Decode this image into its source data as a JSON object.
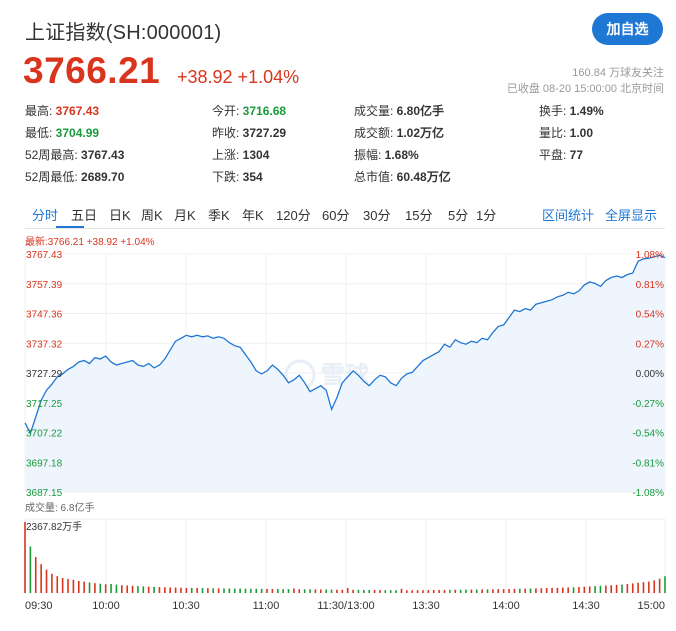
{
  "header": {
    "title": "上证指数(SH:000001)",
    "follow_label": "加自选",
    "price": "3766.21",
    "change": "+38.92 +1.04%",
    "followers": "160.84 万球友关注",
    "status": "已收盘 08-20 15:00:00 北京时间"
  },
  "quote": [
    {
      "label": "最高:",
      "value": "3767.43",
      "tone": "red"
    },
    {
      "label": "今开:",
      "value": "3716.68",
      "tone": "green"
    },
    {
      "label": "成交量:",
      "value": "6.80亿手",
      "tone": ""
    },
    {
      "label": "换手:",
      "value": "1.49%",
      "tone": ""
    },
    {
      "label": "最低:",
      "value": "3704.99",
      "tone": "green"
    },
    {
      "label": "昨收:",
      "value": "3727.29",
      "tone": ""
    },
    {
      "label": "成交额:",
      "value": "1.02万亿",
      "tone": ""
    },
    {
      "label": "量比:",
      "value": "1.00",
      "tone": ""
    },
    {
      "label": "52周最高:",
      "value": "3767.43",
      "tone": ""
    },
    {
      "label": "上涨:",
      "value": "1304",
      "tone": ""
    },
    {
      "label": "振幅:",
      "value": "1.68%",
      "tone": ""
    },
    {
      "label": "平盘:",
      "value": "77",
      "tone": ""
    },
    {
      "label": "52周最低:",
      "value": "2689.70",
      "tone": ""
    },
    {
      "label": "下跌:",
      "value": "354",
      "tone": ""
    },
    {
      "label": "总市值:",
      "value": "60.48万亿",
      "tone": ""
    }
  ],
  "tabs": [
    "分时",
    "五日",
    "日K",
    "周K",
    "月K",
    "季K",
    "年K",
    "120分",
    "60分",
    "30分",
    "15分",
    "5分",
    "1分"
  ],
  "tab_right": [
    "区间统计",
    "全屏显示"
  ],
  "latest_label": "最新:3766.21 +38.92 +1.04%",
  "volume_label": "成交量: 6.8亿手",
  "volume_max_label": "2367.82万手",
  "watermark": "雪球",
  "colors": {
    "up": "#d9341d",
    "down": "#1a9a3c",
    "line": "#1f77d4",
    "accent": "#1f77d4"
  },
  "chart_data": {
    "type": "line",
    "title": "",
    "ylim": [
      3687.15,
      3767.43
    ],
    "prev_close": 3727.29,
    "y_ticks": [
      "3767.43",
      "3757.39",
      "3747.36",
      "3737.32",
      "3727.29",
      "3717.25",
      "3707.22",
      "3697.18",
      "3687.15"
    ],
    "pct_ticks": [
      "1.08%",
      "0.81%",
      "0.54%",
      "0.27%",
      "0.00%",
      "-0.27%",
      "-0.54%",
      "-0.81%",
      "-1.08%"
    ],
    "x_ticks": [
      "09:30",
      "10:00",
      "10:30",
      "11:00",
      "11:30/13:00",
      "13:30",
      "14:00",
      "14:30",
      "15:00"
    ],
    "series": [
      {
        "values": [
          3710.5,
          3707.0,
          3712.5,
          3718.0,
          3721.5,
          3723.5,
          3726.0,
          3727.0,
          3728.5,
          3729.5,
          3731.0,
          3731.5,
          3730.5,
          3732.5,
          3732.0,
          3733.0,
          3731.0,
          3730.0,
          3730.5,
          3731.0,
          3731.5,
          3730.0,
          3729.5,
          3730.5,
          3729.0,
          3730.0,
          3732.0,
          3735.0,
          3738.0,
          3739.0,
          3740.0,
          3739.5,
          3740.0,
          3739.5,
          3739.8,
          3739.0,
          3739.5,
          3739.0,
          3737.5,
          3736.5,
          3736.0,
          3733.5,
          3731.0,
          3728.0,
          3727.0,
          3728.0,
          3730.0,
          3728.5,
          3726.5,
          3724.0,
          3725.0,
          3726.5,
          3724.0,
          3721.0,
          3722.0,
          3723.0,
          3721.5,
          3715.0,
          3719.0,
          3724.0,
          3726.0,
          3728.0,
          3726.5,
          3724.5,
          3723.0,
          3725.0,
          3726.5,
          3726.0,
          3724.0,
          3723.0,
          3725.5,
          3727.0,
          3727.5,
          3729.5,
          3731.5,
          3732.5,
          3733.5,
          3734.5,
          3737.0,
          3736.0,
          3738.5,
          3737.5,
          3737.0,
          3738.0,
          3737.5,
          3739.0,
          3738.5,
          3741.0,
          3743.0,
          3743.5,
          3746.0,
          3748.5,
          3748.0,
          3749.0,
          3748.5,
          3750.5,
          3751.0,
          3751.5,
          3752.0,
          3753.0,
          3753.5,
          3754.5,
          3754.0,
          3755.0,
          3757.0,
          3758.0,
          3757.5,
          3756.5,
          3758.5,
          3759.5,
          3760.0,
          3759.5,
          3760.5,
          3761.0,
          3765.0,
          3765.8,
          3766.0,
          3766.5,
          3767.0,
          3766.21
        ]
      }
    ],
    "volume": [
      2367.82,
      1550,
      1200,
      960,
      780,
      640,
      560,
      500,
      470,
      440,
      400,
      380,
      350,
      330,
      310,
      290,
      300,
      280,
      260,
      250,
      240,
      230,
      220,
      210,
      205,
      198,
      192,
      185,
      180,
      175,
      172,
      170,
      168,
      165,
      160,
      158,
      155,
      152,
      150,
      148,
      146,
      144,
      142,
      140,
      138,
      136,
      135,
      132,
      130,
      128,
      150,
      126,
      124,
      122,
      120,
      118,
      116,
      114,
      112,
      110,
      170,
      108,
      106,
      104,
      102,
      100,
      98,
      96,
      94,
      92,
      140,
      90,
      92,
      95,
      96,
      98,
      100,
      102,
      104,
      106,
      108,
      110,
      112,
      115,
      118,
      120,
      122,
      125,
      128,
      130,
      133,
      136,
      140,
      145,
      150,
      155,
      160,
      165,
      170,
      175,
      180,
      185,
      190,
      200,
      210,
      220,
      230,
      240,
      250,
      260,
      270,
      280,
      300,
      320,
      340,
      360,
      380,
      420,
      480,
      560
    ]
  }
}
